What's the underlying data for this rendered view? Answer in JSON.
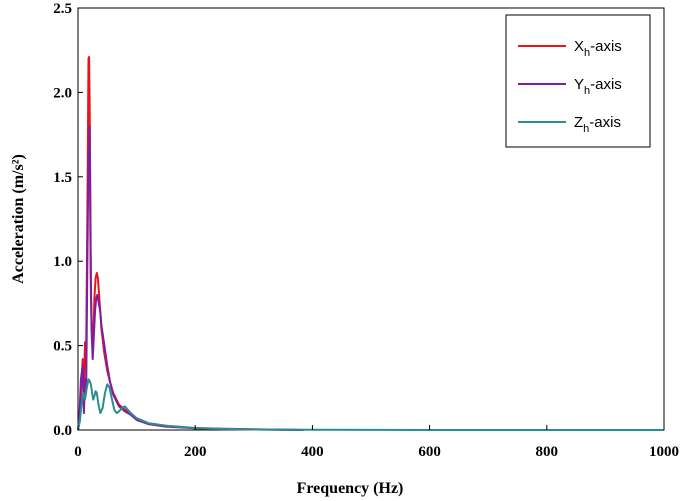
{
  "chart_data": {
    "type": "line",
    "xlabel": "Frequency (Hz)",
    "ylabel": "Acceleration (m/s²)",
    "xlim": [
      0,
      1000
    ],
    "ylim": [
      0,
      2.5
    ],
    "x_ticks": [
      0,
      200,
      400,
      600,
      800,
      1000
    ],
    "y_ticks": [
      "0.0",
      "0.5",
      "1.0",
      "1.5",
      "2.0",
      "2.5"
    ],
    "grid": false,
    "legend_position": "top-right",
    "series": [
      {
        "name": "Xh-axis",
        "color": "#e8161b",
        "x": [
          0,
          2,
          5,
          8,
          10,
          12,
          14,
          16,
          18,
          19,
          20,
          21,
          22,
          24,
          26,
          28,
          30,
          32,
          34,
          36,
          38,
          40,
          45,
          50,
          55,
          60,
          70,
          80,
          90,
          100,
          120,
          150,
          200,
          250,
          300,
          350,
          385
        ],
        "y": [
          0.0,
          0.05,
          0.2,
          0.42,
          0.2,
          0.52,
          0.48,
          1.3,
          2.2,
          2.21,
          1.9,
          1.2,
          0.8,
          0.55,
          0.5,
          0.78,
          0.9,
          0.93,
          0.9,
          0.8,
          0.7,
          0.6,
          0.45,
          0.35,
          0.28,
          0.22,
          0.15,
          0.12,
          0.1,
          0.07,
          0.04,
          0.025,
          0.012,
          0.007,
          0.004,
          0.002,
          0.0
        ]
      },
      {
        "name": "Yh-axis",
        "color": "#7a1fa2",
        "x": [
          0,
          2,
          5,
          8,
          10,
          12,
          14,
          16,
          18,
          19,
          20,
          21,
          22,
          23,
          25,
          27,
          29,
          31,
          33,
          35,
          38,
          40,
          45,
          50,
          55,
          60,
          70,
          80,
          90,
          100,
          120,
          150,
          200,
          250,
          300,
          350,
          385
        ],
        "y": [
          0.0,
          0.05,
          0.3,
          0.38,
          0.1,
          0.3,
          0.25,
          1.0,
          1.65,
          1.6,
          1.8,
          1.4,
          0.9,
          0.6,
          0.42,
          0.55,
          0.7,
          0.78,
          0.8,
          0.76,
          0.7,
          0.62,
          0.5,
          0.38,
          0.28,
          0.21,
          0.14,
          0.11,
          0.09,
          0.06,
          0.035,
          0.02,
          0.01,
          0.005,
          0.003,
          0.001,
          0.0
        ]
      },
      {
        "name": "Zh-axis",
        "color": "#2a8e8e",
        "x": [
          0,
          3,
          6,
          9,
          12,
          15,
          18,
          20,
          22,
          24,
          26,
          28,
          30,
          32,
          35,
          38,
          42,
          46,
          50,
          54,
          58,
          62,
          66,
          70,
          75,
          80,
          85,
          90,
          100,
          120,
          150,
          200,
          300,
          400,
          600,
          800,
          1000
        ],
        "y": [
          0.0,
          0.05,
          0.15,
          0.22,
          0.18,
          0.25,
          0.3,
          0.29,
          0.27,
          0.22,
          0.18,
          0.2,
          0.23,
          0.22,
          0.15,
          0.1,
          0.13,
          0.22,
          0.27,
          0.25,
          0.18,
          0.12,
          0.1,
          0.11,
          0.13,
          0.14,
          0.12,
          0.1,
          0.07,
          0.04,
          0.025,
          0.01,
          0.003,
          0.001,
          0.0,
          0.0,
          0.0
        ]
      }
    ]
  }
}
